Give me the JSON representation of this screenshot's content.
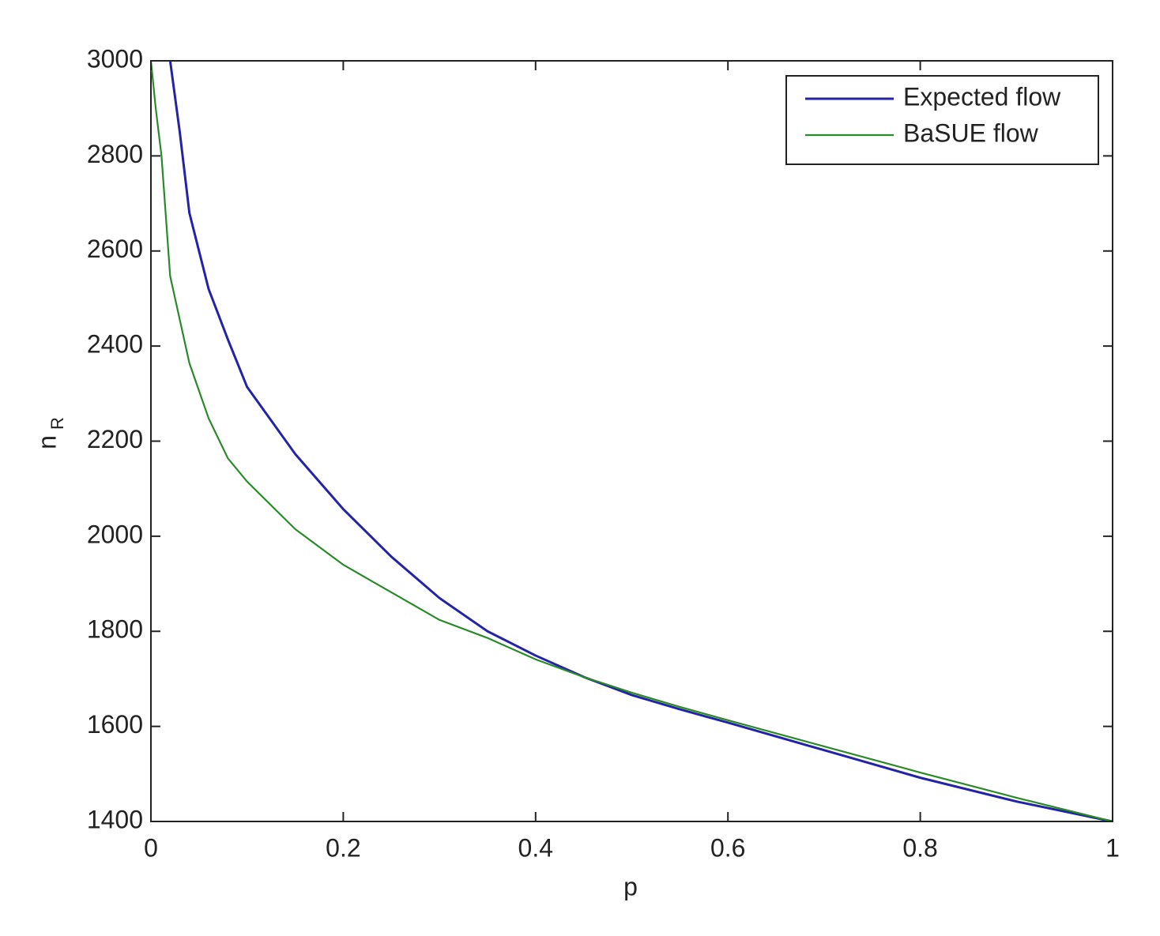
{
  "chart_data": {
    "type": "line",
    "xlabel": "p",
    "ylabel": {
      "text": "n",
      "subscript": "R"
    },
    "xlim": [
      0,
      1
    ],
    "xticks": [
      0,
      0.2,
      0.4,
      0.6,
      0.8,
      1
    ],
    "ylim": [
      1400,
      3000
    ],
    "yticks": [
      1400,
      1600,
      1800,
      2000,
      2200,
      2400,
      2600,
      2800,
      3000
    ],
    "grid": false,
    "legend": "upper right",
    "series": [
      {
        "name": "Expected flow",
        "color": "#2323a6",
        "x": [
          0.02,
          0.03,
          0.04,
          0.06,
          0.08,
          0.1,
          0.15,
          0.2,
          0.25,
          0.3,
          0.35,
          0.4,
          0.45,
          0.5,
          0.55,
          0.6,
          0.7,
          0.8,
          0.9,
          1.0
        ],
        "values": [
          3000,
          2850,
          2680,
          2520,
          2414,
          2314,
          2173,
          2057,
          1957,
          1870,
          1800,
          1749,
          1704,
          1666,
          1636,
          1608,
          1550,
          1492,
          1442,
          1400
        ]
      },
      {
        "name": "BaSUE flow",
        "color": "#2a8a2a",
        "x": [
          0,
          0.005,
          0.011,
          0.02,
          0.04,
          0.06,
          0.08,
          0.1,
          0.15,
          0.2,
          0.25,
          0.3,
          0.35,
          0.4,
          0.45,
          0.5,
          0.55,
          0.6,
          0.7,
          0.8,
          0.9,
          1.0
        ],
        "values": [
          3000,
          2900,
          2800,
          2547,
          2364,
          2248,
          2164,
          2115,
          2015,
          1940,
          1882,
          1824,
          1786,
          1741,
          1704,
          1671,
          1641,
          1613,
          1558,
          1503,
          1450,
          1400
        ]
      }
    ]
  }
}
